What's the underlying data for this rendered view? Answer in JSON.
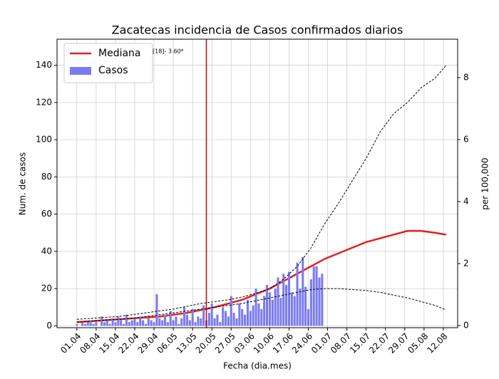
{
  "chart_data": {
    "type": "bar",
    "title": "Zacatecas incidencia de Casos confirmados diarios",
    "x_label": "Fecha (dia.mes)",
    "y_label": "Num. de casos",
    "y2_label": "per 100,000",
    "annotation": "[18]- 3.60*",
    "vline_x": 47,
    "vline_color": "#cc0000",
    "xlim": [
      -7.2,
      138.2
    ],
    "xticks": [
      {
        "value": 0,
        "label": "01.04"
      },
      {
        "value": 7,
        "label": "08.04"
      },
      {
        "value": 14,
        "label": "15.04"
      },
      {
        "value": 21,
        "label": "22.04"
      },
      {
        "value": 28,
        "label": "29.04"
      },
      {
        "value": 35,
        "label": "06.05"
      },
      {
        "value": 42,
        "label": "13.05"
      },
      {
        "value": 49,
        "label": "20.05"
      },
      {
        "value": 56,
        "label": "27.05"
      },
      {
        "value": 63,
        "label": "03.06"
      },
      {
        "value": 70,
        "label": "10.06"
      },
      {
        "value": 77,
        "label": "17.06"
      },
      {
        "value": 84,
        "label": "24.06"
      },
      {
        "value": 91,
        "label": "01.07"
      },
      {
        "value": 98,
        "label": "08.07"
      },
      {
        "value": 105,
        "label": "15.07"
      },
      {
        "value": 112,
        "label": "22.07"
      },
      {
        "value": 119,
        "label": "29.07"
      },
      {
        "value": 126,
        "label": "05.08"
      },
      {
        "value": 133,
        "label": "12.08"
      }
    ],
    "ylim": [
      -1,
      154
    ],
    "yticks": [
      0,
      20,
      40,
      60,
      80,
      100,
      120,
      140
    ],
    "y2lim": [
      -0.07,
      9.24
    ],
    "y2ticks": [
      0,
      2,
      4,
      6,
      8
    ],
    "grid": true,
    "legend": "upper left",
    "series": [
      {
        "name": "Mediana",
        "type": "line",
        "color": "#e02020",
        "x": [
          0,
          5,
          10,
          15,
          20,
          25,
          30,
          35,
          40,
          45,
          50,
          55,
          60,
          65,
          70,
          75,
          80,
          85,
          90,
          95,
          100,
          105,
          110,
          115,
          120,
          125,
          130,
          134
        ],
        "values": [
          2,
          2.5,
          3,
          3.5,
          4,
          4.5,
          5,
          6,
          7,
          8.5,
          10,
          12,
          14,
          17,
          20,
          24,
          28,
          32,
          36,
          39,
          42,
          45,
          47,
          49,
          51,
          51,
          50,
          49
        ]
      },
      {
        "name": "Casos",
        "type": "bar",
        "color": "#7b7bef",
        "x": [
          0,
          1,
          2,
          3,
          4,
          5,
          6,
          7,
          8,
          9,
          10,
          11,
          12,
          13,
          14,
          15,
          16,
          17,
          18,
          19,
          20,
          21,
          22,
          23,
          24,
          25,
          26,
          27,
          28,
          29,
          30,
          31,
          32,
          33,
          34,
          35,
          36,
          37,
          38,
          39,
          40,
          41,
          42,
          43,
          44,
          45,
          46,
          47,
          48,
          49,
          50,
          51,
          52,
          53,
          54,
          55,
          56,
          57,
          58,
          59,
          60,
          61,
          62,
          63,
          64,
          65,
          66,
          67,
          68,
          69,
          70,
          71,
          72,
          73,
          74,
          75,
          76,
          77,
          78,
          79,
          80,
          81,
          82,
          83,
          84,
          85,
          86,
          87,
          88,
          89
        ],
        "values": [
          1,
          0,
          2,
          1,
          2,
          3,
          1,
          2,
          0,
          5,
          2,
          3,
          1,
          4,
          2,
          5,
          3,
          1,
          6,
          2,
          3,
          4,
          2,
          5,
          3,
          1,
          4,
          3,
          2,
          17,
          4,
          3,
          6,
          2,
          8,
          3,
          5,
          1,
          4,
          10,
          6,
          3,
          9,
          2,
          5,
          4,
          11,
          3,
          7,
          12,
          4,
          6,
          2,
          10,
          8,
          5,
          16,
          7,
          4,
          12,
          9,
          6,
          14,
          8,
          11,
          20,
          12,
          9,
          16,
          22,
          18,
          14,
          20,
          26,
          15,
          28,
          22,
          29,
          18,
          16,
          34,
          20,
          37,
          21,
          9,
          25,
          32,
          32,
          26,
          28
        ]
      },
      {
        "type": "dashed",
        "color": "#000000",
        "x": [
          0,
          5,
          10,
          15,
          20,
          25,
          30,
          35,
          40,
          45,
          50,
          55,
          60,
          65,
          70,
          75,
          80,
          85,
          90,
          95,
          100,
          105,
          110,
          115,
          120,
          125,
          130,
          134
        ],
        "values": [
          3.5,
          4,
          4.5,
          5,
          6,
          7,
          8,
          9,
          10.5,
          12,
          13,
          14,
          15.5,
          17.5,
          20,
          25,
          32,
          42,
          55,
          66,
          78,
          90,
          104,
          114,
          120,
          128,
          133,
          140
        ]
      },
      {
        "type": "dashed",
        "color": "#000000",
        "x": [
          0,
          5,
          10,
          15,
          20,
          25,
          30,
          35,
          40,
          45,
          50,
          55,
          60,
          65,
          70,
          75,
          80,
          85,
          90,
          95,
          100,
          105,
          110,
          115,
          120,
          125,
          130,
          134
        ],
        "values": [
          2,
          2.5,
          3,
          3.5,
          4,
          5,
          6,
          7,
          8,
          9,
          10,
          11,
          12,
          13.5,
          15,
          16.5,
          18,
          19.5,
          20,
          20,
          19.5,
          19,
          18,
          16.5,
          15,
          13,
          11,
          8.5
        ]
      }
    ]
  }
}
